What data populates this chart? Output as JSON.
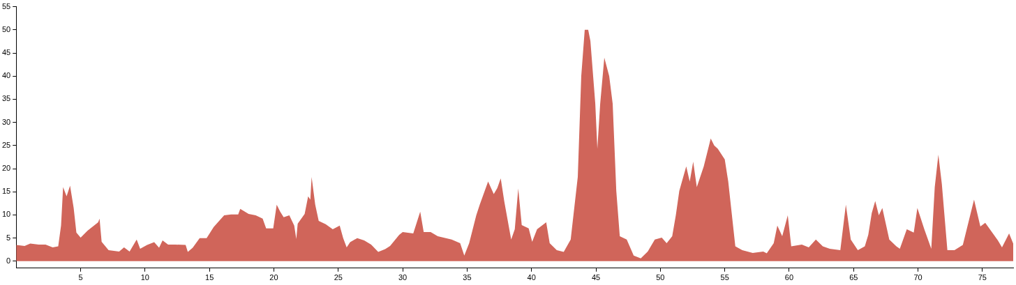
{
  "chart_data": {
    "type": "area",
    "x": [
      0,
      0.65,
      1.09,
      1.74,
      2.28,
      2.83,
      3.26,
      3.48,
      3.64,
      3.91,
      4.18,
      4.46,
      4.67,
      5,
      5.54,
      6.36,
      6.47,
      6.63,
      7.17,
      7.99,
      8.37,
      8.8,
      9.35,
      9.62,
      10.16,
      10.71,
      11.09,
      11.36,
      11.79,
      12.34,
      13.15,
      13.32,
      13.7,
      14.24,
      14.78,
      15.33,
      16.14,
      16.68,
      17.23,
      17.39,
      18.04,
      18.59,
      19.13,
      19.4,
      19.95,
      20.22,
      20.49,
      20.76,
      21.2,
      21.58,
      21.74,
      21.85,
      22.39,
      22.66,
      22.83,
      22.93,
      23.21,
      23.48,
      24.02,
      24.57,
      25.11,
      25.38,
      25.65,
      25.92,
      26.47,
      27.01,
      27.55,
      28.1,
      28.64,
      29.02,
      29.73,
      30,
      30.82,
      31.36,
      31.63,
      32.17,
      32.72,
      33.8,
      34.46,
      34.78,
      35.16,
      35.71,
      35.98,
      36.63,
      37.07,
      37.34,
      37.61,
      37.88,
      38.42,
      38.7,
      38.97,
      39.24,
      39.78,
      40.05,
      40.43,
      41.14,
      41.41,
      41.96,
      42.5,
      43.04,
      43.59,
      43.86,
      44.13,
      44.4,
      44.57,
      44.95,
      45.11,
      45.33,
      45.65,
      46.03,
      46.3,
      46.58,
      46.85,
      47.39,
      47.93,
      48.48,
      49.02,
      49.57,
      50.11,
      50.49,
      50.92,
      51.2,
      51.47,
      52.01,
      52.28,
      52.55,
      52.83,
      53.37,
      53.91,
      54.18,
      54.46,
      55,
      55.27,
      55.82,
      56.36,
      57.17,
      57.99,
      58.26,
      58.8,
      59.08,
      59.46,
      59.89,
      60.16,
      60.98,
      61.52,
      62.07,
      62.61,
      63.15,
      63.97,
      64.4,
      64.78,
      65.33,
      65.87,
      66.14,
      66.41,
      66.68,
      66.96,
      67.23,
      67.77,
      68.32,
      68.59,
      69.13,
      69.67,
      69.95,
      70.49,
      71.03,
      71.3,
      71.58,
      71.85,
      72.28,
      72.83,
      73.48,
      74.35,
      74.84,
      75.22,
      76.2,
      76.52,
      77.07,
      77.39
    ],
    "series": [
      {
        "color": "#d0655a",
        "values": [
          3.5,
          3.3,
          3.8,
          3.6,
          3.6,
          3,
          3.2,
          7.7,
          16,
          14,
          16.3,
          11.5,
          6.2,
          5.1,
          6.6,
          8.4,
          9.2,
          4.2,
          2.4,
          2.1,
          3,
          2.1,
          4.7,
          2.7,
          3.5,
          4.1,
          2.9,
          4.5,
          3.6,
          3.6,
          3.5,
          2,
          2.9,
          5,
          5,
          7.4,
          9.9,
          10.1,
          10.1,
          11.3,
          10.2,
          9.9,
          9.2,
          7.1,
          7.1,
          12.2,
          10.7,
          9.5,
          9.9,
          7.7,
          4.8,
          8.1,
          10.2,
          14,
          13.3,
          18.2,
          12.2,
          8.7,
          8,
          6.9,
          7.7,
          5,
          3,
          4.1,
          5,
          4.5,
          3.6,
          2,
          2.6,
          3.3,
          5.7,
          6.3,
          6,
          10.7,
          6.3,
          6.3,
          5.4,
          4.7,
          3.9,
          1.2,
          3.9,
          9.9,
          12.2,
          17.2,
          14.5,
          15.8,
          17.9,
          13,
          4.7,
          6.9,
          15.7,
          7.8,
          7.1,
          4.2,
          6.9,
          8.4,
          3.9,
          2.4,
          2,
          4.7,
          18.2,
          40,
          50,
          50,
          47.6,
          34,
          24.3,
          34,
          44,
          40,
          34,
          15.2,
          5.4,
          4.7,
          1.2,
          0.6,
          2.1,
          4.7,
          5.1,
          3.9,
          5.4,
          9.9,
          15.2,
          20.5,
          17.2,
          21.5,
          16,
          20.5,
          26.5,
          25,
          24.3,
          22,
          17.2,
          3.2,
          2.4,
          1.8,
          2.1,
          1.7,
          3.9,
          7.7,
          5.4,
          9.9,
          3.2,
          3.6,
          3,
          4.7,
          3.2,
          2.7,
          2.4,
          12.2,
          4.7,
          2.4,
          3.2,
          5.7,
          10.4,
          13,
          9.9,
          11.5,
          4.7,
          3.2,
          2.7,
          6.9,
          6.2,
          11.5,
          6.9,
          2.7,
          16,
          23,
          16.7,
          2.4,
          2.4,
          3.5,
          13.3,
          7.5,
          8.3,
          4.5,
          3,
          6,
          3.8
        ]
      }
    ],
    "xlim": [
      0,
      77.39
    ],
    "xticks": [
      5,
      10,
      15,
      20,
      25,
      30,
      35,
      40,
      45,
      50,
      55,
      60,
      65,
      70,
      75
    ],
    "ylim": [
      -1.5,
      55
    ],
    "yticks": [
      0,
      5,
      10,
      15,
      20,
      25,
      30,
      35,
      40,
      45,
      50,
      55
    ],
    "grid": false,
    "legend": false
  }
}
